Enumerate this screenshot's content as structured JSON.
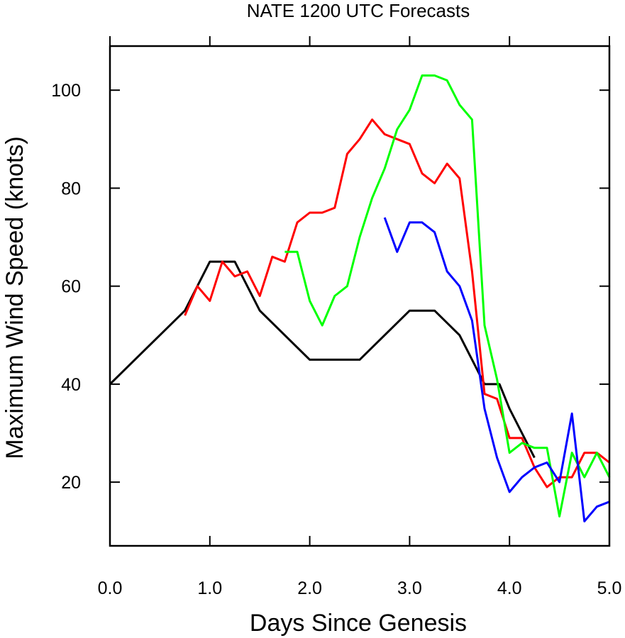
{
  "chart_data": {
    "type": "line",
    "title": "NATE 1200 UTC Forecasts",
    "xlabel": "Days Since Genesis",
    "ylabel": "Maximum Wind Speed (knots)",
    "xlim": [
      0.0,
      5.0
    ],
    "ylim": [
      7,
      109
    ],
    "xticks": [
      0.0,
      1.0,
      2.0,
      3.0,
      4.0,
      5.0
    ],
    "xtick_labels": [
      "0.0",
      "1.0",
      "2.0",
      "3.0",
      "4.0",
      "5.0"
    ],
    "yticks": [
      20,
      40,
      60,
      80,
      100
    ],
    "ytick_labels": [
      "20",
      "40",
      "60",
      "80",
      "100"
    ],
    "grid": false,
    "series": [
      {
        "color": "#000000",
        "x": [
          0.0,
          0.75,
          1.0,
          1.25,
          1.5,
          2.0,
          2.5,
          3.0,
          3.25,
          3.5,
          3.75,
          3.9,
          4.0,
          4.25
        ],
        "y": [
          40,
          55,
          65,
          65,
          55,
          45,
          45,
          55,
          55,
          50,
          40,
          40,
          35,
          25
        ]
      },
      {
        "color": "#ff0000",
        "x": [
          0.75,
          0.875,
          1.0,
          1.125,
          1.25,
          1.375,
          1.5,
          1.625,
          1.75,
          1.875,
          2.0,
          2.125,
          2.25,
          2.375,
          2.5,
          2.625,
          2.75,
          2.875,
          3.0,
          3.125,
          3.25,
          3.375,
          3.5,
          3.625,
          3.75,
          3.875,
          4.0,
          4.125,
          4.25,
          4.375,
          4.5,
          4.625,
          4.75,
          4.875,
          5.0
        ],
        "y": [
          54,
          60,
          57,
          65,
          62,
          63,
          58,
          66,
          65,
          73,
          75,
          75,
          76,
          87,
          90,
          94,
          91,
          90,
          89,
          83,
          81,
          85,
          82,
          63,
          38,
          37,
          29,
          29,
          23,
          19,
          21,
          21,
          26,
          26,
          24
        ]
      },
      {
        "color": "#00ff00",
        "x": [
          1.75,
          1.875,
          2.0,
          2.125,
          2.25,
          2.375,
          2.5,
          2.625,
          2.75,
          2.875,
          3.0,
          3.125,
          3.25,
          3.375,
          3.5,
          3.625,
          3.75,
          3.875,
          4.0,
          4.125,
          4.25,
          4.375,
          4.5,
          4.625,
          4.75,
          4.875,
          5.0
        ],
        "y": [
          67,
          67,
          57,
          52,
          58,
          60,
          70,
          78,
          84,
          92,
          96,
          103,
          103,
          102,
          97,
          94,
          52,
          41,
          26,
          28,
          27,
          27,
          13,
          26,
          21,
          26,
          21
        ]
      },
      {
        "color": "#0000ff",
        "x": [
          2.75,
          2.875,
          3.0,
          3.125,
          3.25,
          3.375,
          3.5,
          3.625,
          3.75,
          3.875,
          4.0,
          4.125,
          4.25,
          4.375,
          4.5,
          4.625,
          4.75,
          4.875,
          5.0
        ],
        "y": [
          74,
          67,
          73,
          73,
          71,
          63,
          60,
          53,
          35,
          25,
          18,
          21,
          23,
          24,
          20,
          34,
          12,
          15,
          16
        ]
      }
    ]
  }
}
